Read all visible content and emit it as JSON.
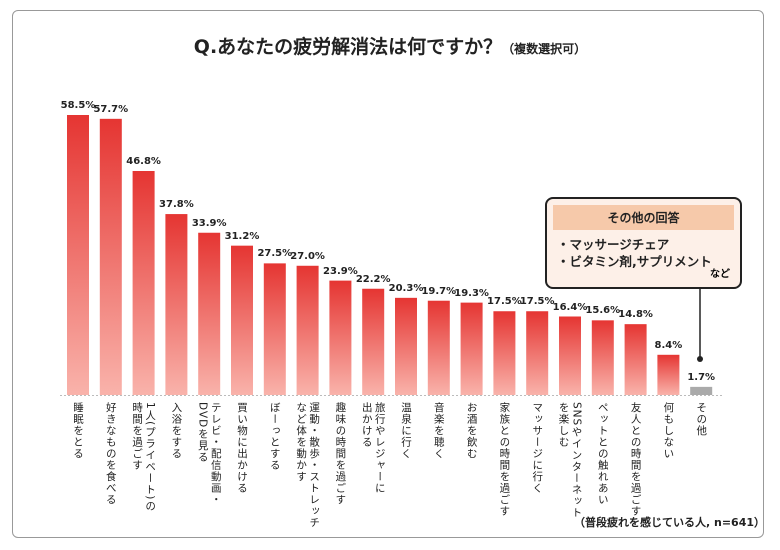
{
  "title": "Q.あなたの疲労解消法は何ですか？",
  "subtitle": "（複数選択可）",
  "note": "（普段疲れを感じている人, n=641）",
  "colors": {
    "bar_top": "#e53532",
    "bar_bottom": "#f9b3ab",
    "other_bar": "#aaaaaa"
  },
  "chart_data": {
    "type": "bar",
    "unit": "%",
    "categories": [
      "睡眠をとる",
      "好きなものを食べる",
      "1人(プライベート)の\n時間を過ごす",
      "入浴をする",
      "テレビ・配信動画・\nDVDを見る",
      "買い物に出かける",
      "ぼーっとする",
      "運動・散歩・ストレッチ\nなど体を動かす",
      "趣味の時間を過ごす",
      "旅行やレジャーに\n出かける",
      "温泉に行く",
      "音楽を聴く",
      "お酒を飲む",
      "家族との時間を過ごす",
      "マッサージに行く",
      "SNSやインターネット\nを楽しむ",
      "ペットとの触れあい",
      "友人との時間を過ごす",
      "何もしない",
      "その他"
    ],
    "values": [
      58.5,
      57.7,
      46.8,
      37.8,
      33.9,
      31.2,
      27.5,
      27.0,
      23.9,
      22.2,
      20.3,
      19.7,
      19.3,
      17.5,
      17.5,
      16.4,
      15.6,
      14.8,
      8.4,
      1.7
    ],
    "value_labels": [
      "58.5%",
      "57.7%",
      "46.8%",
      "37.8%",
      "33.9%",
      "31.2%",
      "27.5%",
      "27.0%",
      "23.9%",
      "22.2%",
      "20.3%",
      "19.7%",
      "19.3%",
      "17.5%",
      "17.5%",
      "16.4%",
      "15.6%",
      "14.8%",
      "8.4%",
      "1.7%"
    ],
    "ylim": [
      0,
      60
    ]
  },
  "other_box": {
    "header": "その他の回答",
    "items": [
      "・マッサージチェア",
      "・ビタミン剤,サプリメント"
    ],
    "etc": "など"
  }
}
